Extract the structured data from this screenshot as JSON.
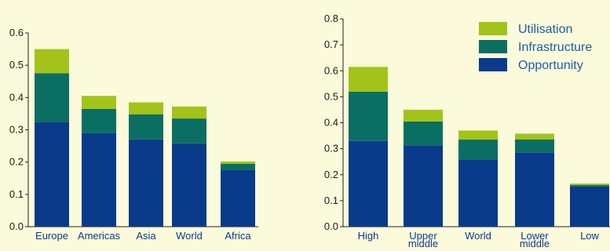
{
  "colors": {
    "background": "#fbfadb",
    "Opportunity": "#0a3a8a",
    "Infrastructure": "#0b6e62",
    "Utilisation": "#a3c31a",
    "category_text": "#0e3a8c",
    "legend_text": "#1a5ea8"
  },
  "legend": {
    "placement": "top-right of right chart",
    "items": [
      "Utilisation",
      "Infrastructure",
      "Opportunity"
    ]
  },
  "chart_data": [
    {
      "type": "bar",
      "stacked": true,
      "title": "",
      "xlabel": "",
      "ylabel": "",
      "categories": [
        {
          "lines": [
            "Europe"
          ]
        },
        {
          "lines": [
            "Americas"
          ]
        },
        {
          "lines": [
            "Asia"
          ]
        },
        {
          "lines": [
            "World"
          ]
        },
        {
          "lines": [
            "Africa"
          ]
        }
      ],
      "series": [
        {
          "name": "Opportunity",
          "values": [
            0.325,
            0.29,
            0.27,
            0.258,
            0.175
          ]
        },
        {
          "name": "Infrastructure",
          "values": [
            0.15,
            0.075,
            0.078,
            0.077,
            0.02
          ]
        },
        {
          "name": "Utilisation",
          "values": [
            0.075,
            0.04,
            0.037,
            0.037,
            0.007
          ]
        }
      ],
      "ylim": [
        0,
        0.6
      ],
      "yticks": [
        "0.0",
        "0.1",
        "0.2",
        "0.3",
        "0.4",
        "0.5",
        "0.6"
      ],
      "grid": false
    },
    {
      "type": "bar",
      "stacked": true,
      "title": "",
      "xlabel": "",
      "ylabel": "",
      "categories": [
        {
          "lines": [
            "High"
          ]
        },
        {
          "lines": [
            "Upper",
            "middle"
          ]
        },
        {
          "lines": [
            "World"
          ]
        },
        {
          "lines": [
            "Lower",
            "middle"
          ]
        },
        {
          "lines": [
            "Low"
          ]
        }
      ],
      "series": [
        {
          "name": "Opportunity",
          "values": [
            0.33,
            0.313,
            0.258,
            0.286,
            0.155
          ]
        },
        {
          "name": "Infrastructure",
          "values": [
            0.19,
            0.092,
            0.077,
            0.05,
            0.005
          ]
        },
        {
          "name": "Utilisation",
          "values": [
            0.095,
            0.045,
            0.035,
            0.022,
            0.006
          ]
        }
      ],
      "ylim": [
        0,
        0.8
      ],
      "yticks": [
        "0.0",
        "0.1",
        "0.2",
        "0.3",
        "0.4",
        "0.5",
        "0.6",
        "0.7",
        "0.8"
      ],
      "grid": false
    }
  ]
}
